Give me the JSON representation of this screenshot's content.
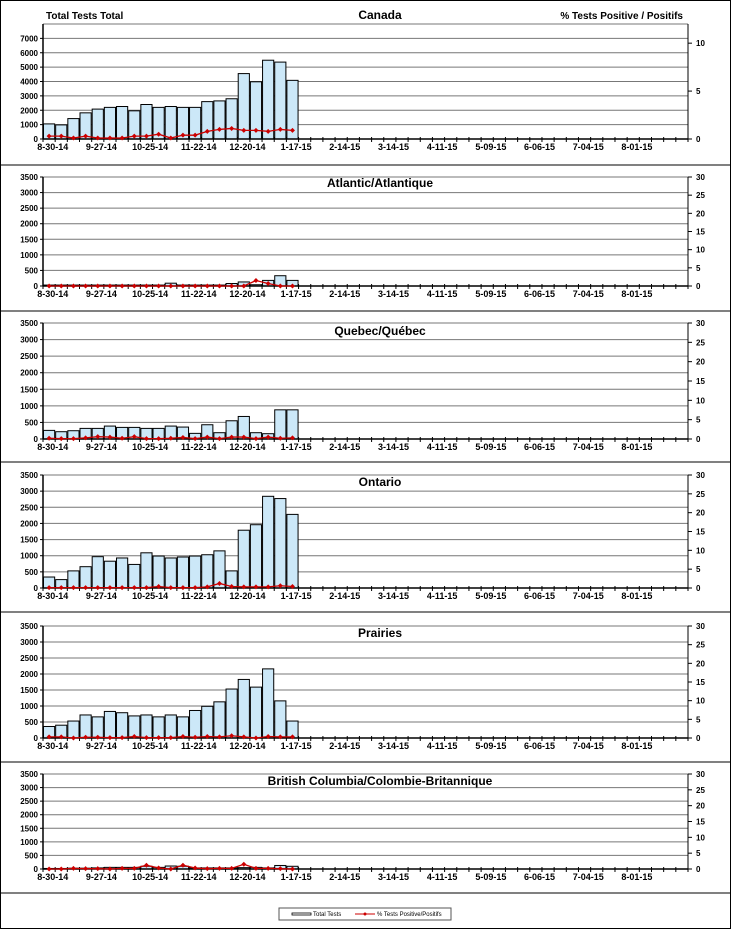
{
  "header": {
    "left_axis_title": "Total Tests Total",
    "right_axis_title": "% Tests Positive / Positifs"
  },
  "colors": {
    "bar_fill": "#cce8f8",
    "bar_stroke": "#000000",
    "line": "#cc0000",
    "left_title": "#2222cc",
    "right_title": "#cc0000"
  },
  "legend": {
    "bar_label": "Total Tests",
    "line_label": "% Tests Positive/Positifs",
    "placement": "bottom-center"
  },
  "chart_data": [
    {
      "type": "bar+line",
      "title": "Canada",
      "x_tick_labels": [
        "8-30-14",
        "9-27-14",
        "10-25-14",
        "11-22-14",
        "12-20-14",
        "1-17-15",
        "2-14-15",
        "3-14-15",
        "4-11-15",
        "5-09-15",
        "6-06-15",
        "7-04-15",
        "8-01-15"
      ],
      "weeks": 53,
      "ylim_left": [
        0,
        8000
      ],
      "yticks_left": [
        0,
        1000,
        2000,
        3000,
        4000,
        5000,
        6000,
        7000
      ],
      "ylim_right": [
        0,
        12
      ],
      "yticks_right": [
        0,
        5,
        10
      ],
      "total_tests": [
        1050,
        980,
        1420,
        1820,
        2080,
        2200,
        2260,
        1960,
        2400,
        2200,
        2260,
        2200,
        2200,
        2600,
        2650,
        2800,
        4550,
        3980,
        5480,
        5350,
        4080
      ],
      "pct_positive": [
        0.3,
        0.3,
        0.1,
        0.3,
        0.1,
        0.1,
        0.1,
        0.3,
        0.3,
        0.5,
        0.1,
        0.4,
        0.4,
        0.8,
        1.0,
        1.1,
        0.9,
        0.9,
        0.8,
        1.0,
        0.9
      ]
    },
    {
      "type": "bar+line",
      "title": "Atlantic/Atlantique",
      "weeks": 53,
      "x_tick_labels": [
        "8-30-14",
        "9-27-14",
        "10-25-14",
        "11-22-14",
        "12-20-14",
        "1-17-15",
        "2-14-15",
        "3-14-15",
        "4-11-15",
        "5-09-15",
        "6-06-15",
        "7-04-15",
        "8-01-15"
      ],
      "ylim_left": [
        0,
        3500
      ],
      "yticks_left": [
        0,
        500,
        1000,
        1500,
        2000,
        2500,
        3000,
        3500
      ],
      "ylim_right": [
        0,
        30
      ],
      "yticks_right": [
        0,
        5,
        10,
        15,
        20,
        25,
        30
      ],
      "total_tests": [
        30,
        30,
        30,
        30,
        30,
        30,
        30,
        30,
        30,
        30,
        90,
        30,
        30,
        30,
        30,
        80,
        130,
        40,
        180,
        330,
        180
      ],
      "pct_positive": [
        0,
        0,
        0,
        0,
        0,
        0,
        0,
        0,
        0,
        0,
        0,
        0,
        0,
        0,
        0,
        0,
        0,
        1.5,
        0.7,
        0,
        0
      ]
    },
    {
      "type": "bar+line",
      "title": "Quebec/Québec",
      "weeks": 53,
      "x_tick_labels": [
        "8-30-14",
        "9-27-14",
        "10-25-14",
        "11-22-14",
        "12-20-14",
        "1-17-15",
        "2-14-15",
        "3-14-15",
        "4-11-15",
        "5-09-15",
        "6-06-15",
        "7-04-15",
        "8-01-15"
      ],
      "ylim_left": [
        0,
        3500
      ],
      "yticks_left": [
        0,
        500,
        1000,
        1500,
        2000,
        2500,
        3000,
        3500
      ],
      "ylim_right": [
        0,
        30
      ],
      "yticks_right": [
        0,
        5,
        10,
        15,
        20,
        25,
        30
      ],
      "total_tests": [
        260,
        220,
        250,
        320,
        320,
        390,
        350,
        350,
        320,
        320,
        390,
        360,
        170,
        430,
        190,
        550,
        680,
        190,
        160,
        880,
        880
      ],
      "pct_positive": [
        0.2,
        0.1,
        0.1,
        0.3,
        0.6,
        0.5,
        0.2,
        0.6,
        0.1,
        0.1,
        0.2,
        0.4,
        0.1,
        0.5,
        0.1,
        0.5,
        0.5,
        0.1,
        0.5,
        0.2,
        0.3
      ]
    },
    {
      "type": "bar+line",
      "title": "Ontario",
      "weeks": 53,
      "x_tick_labels": [
        "8-30-14",
        "9-27-14",
        "10-25-14",
        "11-22-14",
        "12-20-14",
        "1-17-15",
        "2-14-15",
        "3-14-15",
        "4-11-15",
        "5-09-15",
        "6-06-15",
        "7-04-15",
        "8-01-15"
      ],
      "ylim_left": [
        0,
        3500
      ],
      "yticks_left": [
        0,
        500,
        1000,
        1500,
        2000,
        2500,
        3000,
        3500
      ],
      "ylim_right": [
        0,
        30
      ],
      "yticks_right": [
        0,
        5,
        10,
        15,
        20,
        25,
        30
      ],
      "total_tests": [
        340,
        260,
        530,
        660,
        970,
        830,
        930,
        730,
        1090,
        990,
        930,
        960,
        990,
        1030,
        1150,
        530,
        1790,
        1960,
        2840,
        2770,
        2280
      ],
      "pct_positive": [
        0.1,
        0.1,
        0.1,
        0.1,
        0.1,
        0.1,
        0.1,
        0.1,
        0.1,
        0.4,
        0.1,
        0.1,
        0.1,
        0.3,
        1.2,
        0.4,
        0.3,
        0.3,
        0.3,
        0.6,
        0.4
      ]
    },
    {
      "type": "bar+line",
      "title": "Prairies",
      "weeks": 53,
      "x_tick_labels": [
        "8-30-14",
        "9-27-14",
        "10-25-14",
        "11-22-14",
        "12-20-14",
        "1-17-15",
        "2-14-15",
        "3-14-15",
        "4-11-15",
        "5-09-15",
        "6-06-15",
        "7-04-15",
        "8-01-15"
      ],
      "ylim_left": [
        0,
        3500
      ],
      "yticks_left": [
        0,
        500,
        1000,
        1500,
        2000,
        2500,
        3000,
        3500
      ],
      "ylim_right": [
        0,
        30
      ],
      "yticks_right": [
        0,
        5,
        10,
        15,
        20,
        25,
        30
      ],
      "total_tests": [
        360,
        400,
        530,
        720,
        660,
        830,
        790,
        690,
        720,
        660,
        720,
        660,
        860,
        990,
        1130,
        1530,
        1830,
        1590,
        2160,
        1160,
        530
      ],
      "pct_positive": [
        0.3,
        0.3,
        0,
        0.2,
        0.2,
        0.1,
        0.1,
        0.4,
        0.1,
        0.1,
        0.1,
        0.4,
        0.2,
        0.4,
        0.3,
        0.6,
        0.3,
        0,
        0.4,
        0.3,
        0.3
      ]
    },
    {
      "type": "bar+line",
      "title": "British Columbia/Colombie-Britannique",
      "weeks": 53,
      "x_tick_labels": [
        "8-30-14",
        "9-27-14",
        "10-25-14",
        "11-22-14",
        "12-20-14",
        "1-17-15",
        "2-14-15",
        "3-14-15",
        "4-11-15",
        "5-09-15",
        "6-06-15",
        "7-04-15",
        "8-01-15"
      ],
      "ylim_left": [
        0,
        3500
      ],
      "yticks_left": [
        0,
        500,
        1000,
        1500,
        2000,
        2500,
        3000,
        3500
      ],
      "ylim_right": [
        0,
        30
      ],
      "yticks_right": [
        0,
        5,
        10,
        15,
        20,
        25,
        30
      ],
      "total_tests": [
        20,
        20,
        30,
        30,
        40,
        60,
        60,
        60,
        100,
        60,
        110,
        100,
        40,
        40,
        40,
        40,
        50,
        60,
        40,
        130,
        100
      ],
      "pct_positive": [
        0,
        0,
        0.2,
        0.1,
        0.1,
        0,
        0.2,
        0.2,
        1.2,
        0.3,
        0,
        1.2,
        0.3,
        0.1,
        0.2,
        0.2,
        1.5,
        0.2,
        0.2,
        0.1,
        0
      ]
    }
  ]
}
